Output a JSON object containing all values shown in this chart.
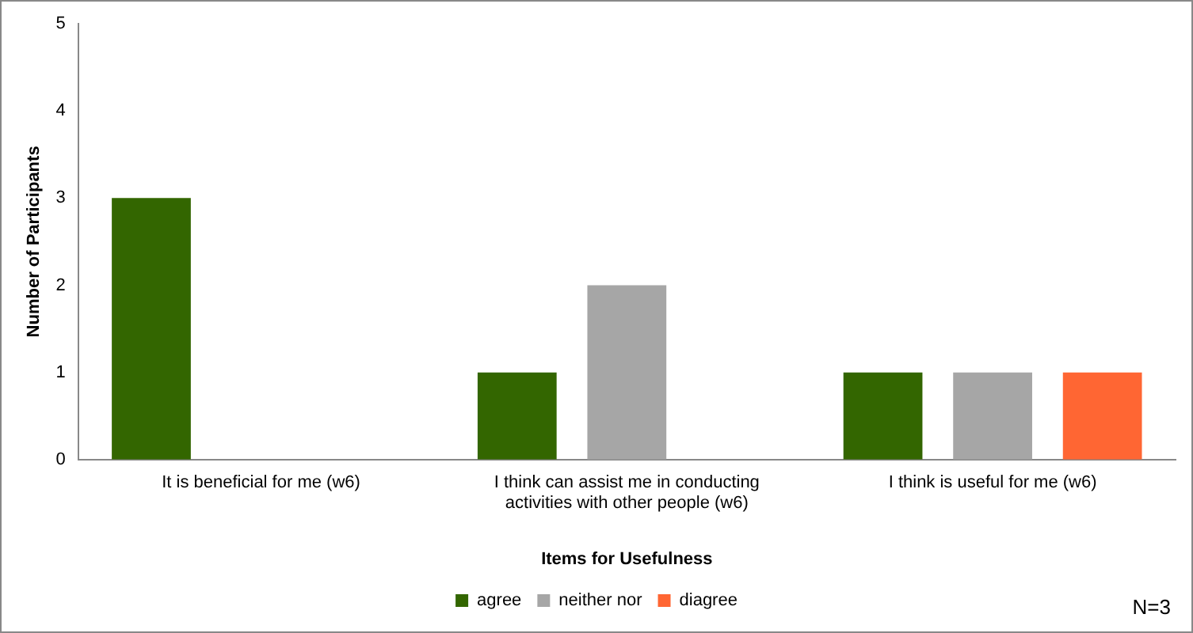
{
  "chart_data": {
    "type": "bar",
    "xlabel": "Items for Usefulness",
    "ylabel": "Number of Participants",
    "categories": [
      "It is beneficial for me (w6)",
      "I think can assist me in conducting activities with other people (w6)",
      "I think is useful for me (w6)"
    ],
    "series": [
      {
        "name": "agree",
        "color": "#336600",
        "values": [
          3,
          1,
          1
        ]
      },
      {
        "name": "neither nor",
        "color": "#a6a6a6",
        "values": [
          0,
          2,
          1
        ]
      },
      {
        "name": "diagree",
        "color": "#ff6633",
        "values": [
          0,
          0,
          1
        ]
      }
    ],
    "ylim": [
      0,
      5
    ],
    "yticks": [
      0,
      1,
      2,
      3,
      4,
      5
    ],
    "grid": false,
    "legend": "bottom",
    "annotations": [
      "N=3"
    ]
  }
}
